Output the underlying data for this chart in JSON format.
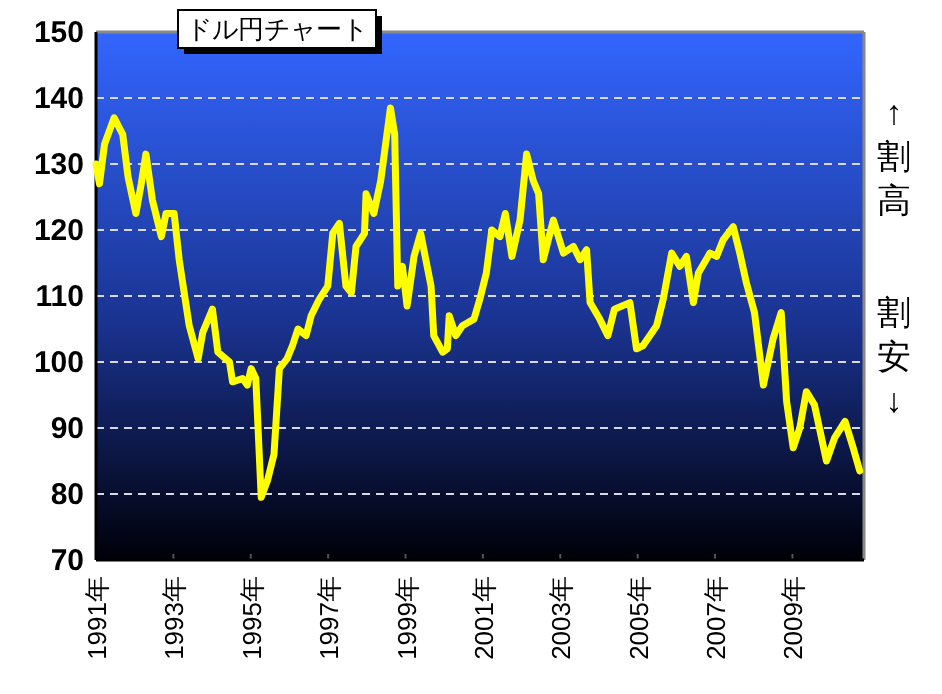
{
  "chart_data": {
    "type": "line",
    "title": "ドル円チャート",
    "annotations": [
      "↑割高",
      "割安↓"
    ],
    "x": [
      1991.0,
      1991.09,
      1991.22,
      1991.47,
      1991.69,
      1991.83,
      1992.03,
      1992.17,
      1992.29,
      1992.46,
      1992.69,
      1992.81,
      1993.02,
      1993.15,
      1993.41,
      1993.64,
      1993.76,
      1994.01,
      1994.15,
      1994.45,
      1994.53,
      1994.79,
      1994.91,
      1995.01,
      1995.13,
      1995.27,
      1995.43,
      1995.6,
      1995.74,
      1995.94,
      1996.08,
      1996.22,
      1996.43,
      1996.56,
      1996.77,
      1996.99,
      1997.12,
      1997.29,
      1997.46,
      1997.6,
      1997.72,
      1997.94,
      1997.98,
      1998.18,
      1998.36,
      1998.61,
      1998.72,
      1998.8,
      1998.92,
      1999.04,
      1999.22,
      1999.39,
      1999.66,
      1999.73,
      1999.96,
      2000.08,
      2000.13,
      2000.3,
      2000.47,
      2000.77,
      2000.92,
      2001.09,
      2001.23,
      2001.44,
      2001.58,
      2001.75,
      2001.96,
      2002.13,
      2002.3,
      2002.44,
      2002.56,
      2002.82,
      2003.08,
      2003.34,
      2003.51,
      2003.68,
      2003.77,
      2004.02,
      2004.23,
      2004.4,
      2004.8,
      2004.97,
      2005.14,
      2005.49,
      2005.66,
      2005.88,
      2006.09,
      2006.26,
      2006.44,
      2006.57,
      2006.87,
      2007.04,
      2007.21,
      2007.47,
      2007.64,
      2007.81,
      2008.02,
      2008.25,
      2008.5,
      2008.71,
      2008.85,
      2009.02,
      2009.19,
      2009.36,
      2009.57,
      2009.88,
      2010.09,
      2010.36,
      2010.57,
      2010.74
    ],
    "series": [
      {
        "color": "#ffff00",
        "values": [
          130,
          127,
          133,
          137,
          134.5,
          128,
          122.5,
          127,
          131.5,
          124.5,
          119,
          122.5,
          122.5,
          115.5,
          105.5,
          100.5,
          104.5,
          108,
          101.5,
          100,
          97,
          97.5,
          96.5,
          99,
          97.5,
          79.5,
          82,
          86,
          99,
          100.5,
          102.5,
          105,
          104,
          107,
          109.5,
          111.5,
          119.5,
          121,
          111.5,
          110.5,
          117.5,
          119.5,
          125.5,
          122.5,
          127.5,
          138.5,
          134.5,
          111.5,
          114.5,
          108.5,
          116,
          119.5,
          111.5,
          104,
          101.5,
          102,
          107,
          104,
          105.5,
          106.5,
          109.5,
          113.5,
          120,
          119,
          122.5,
          116,
          121.5,
          131.5,
          127.5,
          125.5,
          115.5,
          121.5,
          116.5,
          117.5,
          115.5,
          117,
          109,
          106.5,
          104,
          108,
          109,
          102,
          102.5,
          105.5,
          109.5,
          116.5,
          114.5,
          116,
          109,
          113.5,
          116.5,
          116,
          118.5,
          120.5,
          116.5,
          112,
          107.5,
          96.5,
          103.5,
          107.5,
          94,
          87,
          90,
          95.5,
          93.5,
          85,
          88.5,
          91,
          87,
          83.5
        ]
      }
    ],
    "xlim": [
      1991,
      2010.85
    ],
    "xticks": [
      {
        "value": 1991,
        "label": "1991年"
      },
      {
        "value": 1993,
        "label": "1993年"
      },
      {
        "value": 1995,
        "label": "1995年"
      },
      {
        "value": 1997,
        "label": "1997年"
      },
      {
        "value": 1999,
        "label": "1999年"
      },
      {
        "value": 2001,
        "label": "2001年"
      },
      {
        "value": 2003,
        "label": "2003年"
      },
      {
        "value": 2005,
        "label": "2005年"
      },
      {
        "value": 2007,
        "label": "2007年"
      },
      {
        "value": 2009,
        "label": "2009年"
      }
    ],
    "ylim": [
      70,
      150
    ],
    "yticks": [
      70,
      80,
      90,
      100,
      110,
      120,
      130,
      140,
      150
    ],
    "grid": "y",
    "marker": "none",
    "line_style": "solid"
  }
}
